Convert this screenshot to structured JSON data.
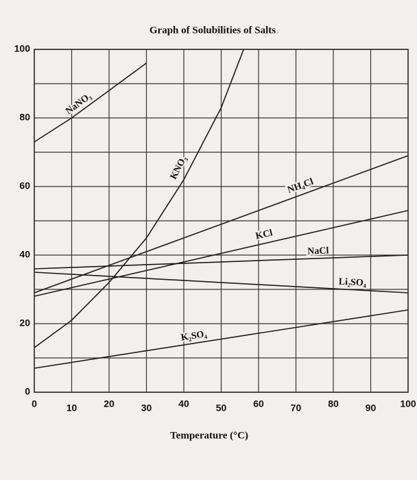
{
  "chart_data": {
    "type": "line",
    "title": "Graph of Solubilities of Salts",
    "x_label": "Temperature (°C)",
    "xlim": [
      0,
      100
    ],
    "xticks": [
      0,
      10,
      20,
      30,
      40,
      50,
      60,
      70,
      80,
      90,
      100
    ],
    "ylim": [
      0,
      100
    ],
    "yticks": [
      0,
      20,
      40,
      60,
      80,
      100
    ],
    "ygrid": [
      0,
      10,
      20,
      30,
      40,
      50,
      60,
      70,
      80,
      90,
      100
    ],
    "grid": true,
    "color": "#1a1a1a",
    "series": [
      {
        "name": "NaNO₃",
        "x": [
          0,
          10,
          20,
          30
        ],
        "values": [
          73,
          80,
          88,
          96
        ]
      },
      {
        "name": "KNO₃",
        "x": [
          0,
          10,
          20,
          30,
          40,
          50,
          56
        ],
        "values": [
          13,
          21,
          32,
          45,
          62,
          83,
          100
        ]
      },
      {
        "name": "NH₄Cl",
        "x": [
          0,
          20,
          40,
          60,
          80,
          100
        ],
        "values": [
          29,
          37,
          45,
          53,
          61,
          69
        ]
      },
      {
        "name": "KCl",
        "x": [
          0,
          100
        ],
        "values": [
          28,
          53
        ]
      },
      {
        "name": "NaCl",
        "x": [
          0,
          100
        ],
        "values": [
          36,
          40
        ]
      },
      {
        "name": "Li₂SO₄",
        "x": [
          0,
          100
        ],
        "values": [
          35,
          29
        ]
      },
      {
        "name": "K₂SO₄",
        "x": [
          0,
          100
        ],
        "values": [
          7,
          24
        ]
      }
    ]
  }
}
